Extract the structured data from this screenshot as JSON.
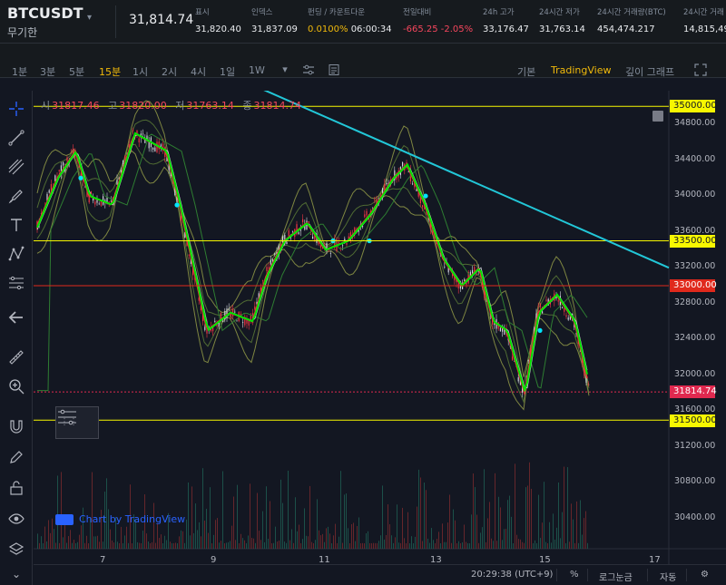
{
  "ticker": {
    "symbol": "BTCUSDT",
    "caret": "▾",
    "subtitle": "무기한",
    "last_price": "31,814.74",
    "stats": [
      {
        "label": "표시",
        "value": "31,820.40",
        "cls": ""
      },
      {
        "label": "인덱스",
        "value": "31,837.09",
        "cls": ""
      },
      {
        "label": "펀딩 / 카운트다운",
        "value_a": "0.0100%",
        "value_b": "06:00:34",
        "cls": "funding"
      },
      {
        "label": "전일대비",
        "value": "-665.25 -2.05%",
        "cls": "red"
      },
      {
        "label": "24h 고가",
        "value": "33,176.47",
        "cls": ""
      },
      {
        "label": "24시간 저가",
        "value": "31,763.14",
        "cls": ""
      },
      {
        "label": "24시간 거래량(BTC)",
        "value": "454,474.217",
        "cls": ""
      },
      {
        "label": "24시간 거래",
        "value": "14,815,49",
        "cls": ""
      }
    ]
  },
  "toolbar": {
    "intervals": [
      "1분",
      "3분",
      "5분",
      "15분",
      "1시",
      "2시",
      "4시",
      "1일",
      "1W"
    ],
    "active_interval": "15분",
    "views": [
      "기본",
      "TradingView",
      "깊이 그래프"
    ],
    "active_view": "TradingView"
  },
  "legend": {
    "open_key": "시",
    "open": "31817.46",
    "high_key": "고",
    "high": "31820.00",
    "low_key": "저",
    "low": "31763.14",
    "close_key": "종",
    "close": "31814.74"
  },
  "watermark": "Chart by TradingView",
  "axis": {
    "y_ticks": [
      "34800.00",
      "34400.00",
      "34000.00",
      "33600.00",
      "33200.00",
      "32800.00",
      "32400.00",
      "32000.00",
      "31600.00",
      "31200.00",
      "30800.00",
      "30400.00"
    ],
    "x_ticks": [
      "7",
      "9",
      "11",
      "13",
      "15",
      "17"
    ]
  },
  "levels": {
    "l35000": "35000.00",
    "l33500": "33500.00",
    "l33000": "33000.00",
    "current": "31814.74",
    "l31500": "31500.00"
  },
  "status": {
    "time": "20:29:38 (UTC+9)",
    "percent": "%",
    "log": "로그눈금",
    "auto": "자동"
  },
  "colors": {
    "up": "#26a69a",
    "down": "#ef5350",
    "level_yellow": "#f7f700",
    "level_red": "#e0291c",
    "trendline": "#22c7d8",
    "accent": "#f0b90b"
  }
}
